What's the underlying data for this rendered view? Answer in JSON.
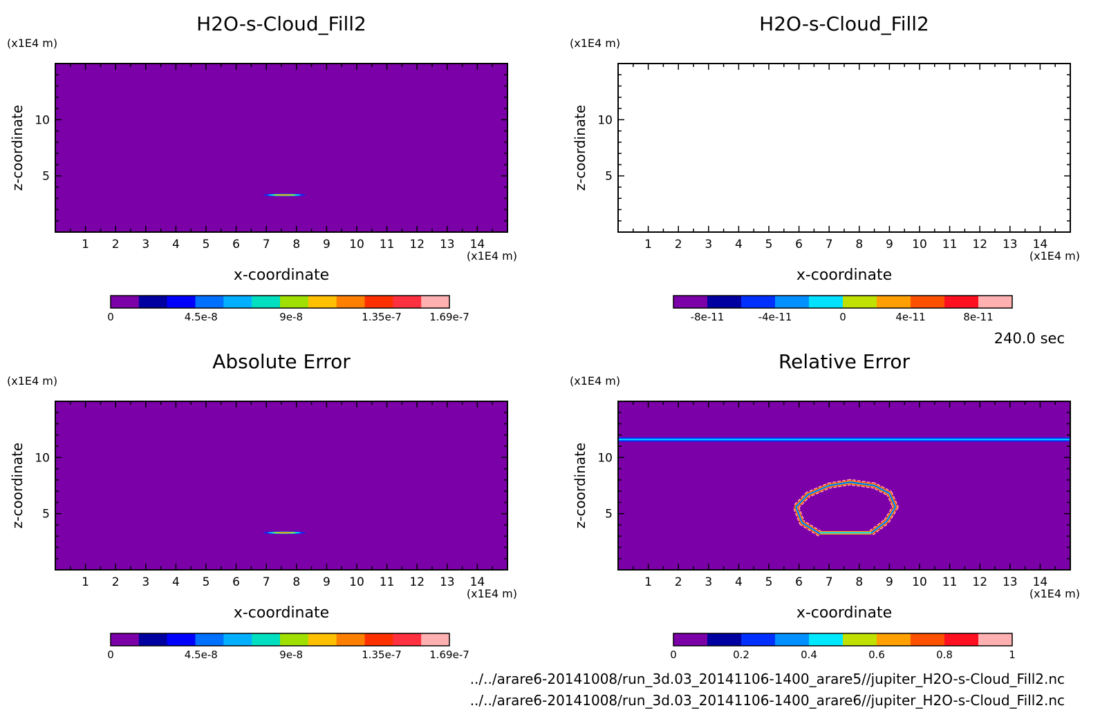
{
  "chart_data": [
    {
      "id": "p1",
      "type": "heatmap",
      "title": "H2O-s-Cloud_Fill2",
      "xlabel": "x-coordinate",
      "ylabel": "z-coordinate",
      "x_unit": "(x1E4 m)",
      "y_unit": "(x1E4 m)",
      "xlim": [
        0,
        15
      ],
      "ylim": [
        0,
        15
      ],
      "x_ticks": [
        1,
        2,
        3,
        4,
        5,
        6,
        7,
        8,
        9,
        10,
        11,
        12,
        13,
        14
      ],
      "y_ticks": [
        5,
        10
      ],
      "background_color": "#7b00a8",
      "feature": {
        "kind": "thin-ellipse",
        "cx": 7.6,
        "cy": 3.3,
        "rx": 0.7,
        "ry": 0.12,
        "colors": [
          "#0030ff",
          "#00e0ff",
          "#b8e000",
          "#ff8c00"
        ]
      },
      "colorbar": {
        "colors": [
          "#7b00a8",
          "#0000a0",
          "#0000ff",
          "#0070ff",
          "#00b0ff",
          "#00e0c0",
          "#a0e000",
          "#ffc000",
          "#ff8000",
          "#ff3000",
          "#ff3040",
          "#ffb0b0"
        ],
        "tick_labels": [
          "0",
          "4.5e-8",
          "9e-8",
          "1.35e-7",
          "1.69e-7"
        ],
        "tick_fractions": [
          0,
          0.267,
          0.533,
          0.8,
          1.0
        ]
      }
    },
    {
      "id": "p2",
      "type": "heatmap",
      "title": "H2O-s-Cloud_Fill2",
      "xlabel": "x-coordinate",
      "ylabel": "z-coordinate",
      "x_unit": "(x1E4 m)",
      "y_unit": "(x1E4 m)",
      "xlim": [
        0,
        15
      ],
      "ylim": [
        0,
        15
      ],
      "x_ticks": [
        1,
        2,
        3,
        4,
        5,
        6,
        7,
        8,
        9,
        10,
        11,
        12,
        13,
        14
      ],
      "y_ticks": [
        5,
        10
      ],
      "background_color": "#ffffff",
      "colorbar": {
        "colors": [
          "#7b00a8",
          "#0000a0",
          "#0030ff",
          "#0090ff",
          "#00e0ff",
          "#c0e000",
          "#ffa000",
          "#ff5000",
          "#ff1020",
          "#ffb0b0"
        ],
        "tick_labels": [
          "-8e-11",
          "-4e-11",
          "0",
          "4e-11",
          "8e-11"
        ],
        "tick_fractions": [
          0.1,
          0.3,
          0.5,
          0.7,
          0.9
        ]
      }
    },
    {
      "id": "p3",
      "type": "heatmap",
      "title": "Absolute Error",
      "xlabel": "x-coordinate",
      "ylabel": "z-coordinate",
      "x_unit": "(x1E4 m)",
      "y_unit": "(x1E4 m)",
      "xlim": [
        0,
        15
      ],
      "ylim": [
        0,
        15
      ],
      "x_ticks": [
        1,
        2,
        3,
        4,
        5,
        6,
        7,
        8,
        9,
        10,
        11,
        12,
        13,
        14
      ],
      "y_ticks": [
        5,
        10
      ],
      "background_color": "#7b00a8",
      "feature": {
        "kind": "thin-ellipse",
        "cx": 7.6,
        "cy": 3.3,
        "rx": 0.7,
        "ry": 0.12,
        "colors": [
          "#0030ff",
          "#00e0ff",
          "#b8e000",
          "#ff8c00"
        ]
      },
      "colorbar": {
        "colors": [
          "#7b00a8",
          "#0000a0",
          "#0000ff",
          "#0070ff",
          "#00b0ff",
          "#00e0c0",
          "#a0e000",
          "#ffc000",
          "#ff8000",
          "#ff3000",
          "#ff3040",
          "#ffb0b0"
        ],
        "tick_labels": [
          "0",
          "4.5e-8",
          "9e-8",
          "1.35e-7",
          "1.69e-7"
        ],
        "tick_fractions": [
          0,
          0.267,
          0.533,
          0.8,
          1.0
        ]
      }
    },
    {
      "id": "p4",
      "type": "heatmap",
      "title": "Relative Error",
      "xlabel": "x-coordinate",
      "ylabel": "z-coordinate",
      "x_unit": "(x1E4 m)",
      "y_unit": "(x1E4 m)",
      "xlim": [
        0,
        15
      ],
      "ylim": [
        0,
        15
      ],
      "x_ticks": [
        1,
        2,
        3,
        4,
        5,
        6,
        7,
        8,
        9,
        10,
        11,
        12,
        13,
        14
      ],
      "y_ticks": [
        5,
        10
      ],
      "background_color": "#7b00a8",
      "feature": {
        "kind": "arch-and-band",
        "band_z": 11.6,
        "arch_points": [
          [
            6.7,
            3.2
          ],
          [
            6.1,
            4.2
          ],
          [
            5.9,
            5.6
          ],
          [
            6.3,
            6.7
          ],
          [
            7.0,
            7.5
          ],
          [
            7.7,
            7.8
          ],
          [
            8.5,
            7.5
          ],
          [
            9.0,
            6.8
          ],
          [
            9.2,
            5.6
          ],
          [
            8.9,
            4.3
          ],
          [
            8.4,
            3.3
          ]
        ],
        "base_line": [
          6.7,
          8.4,
          3.3
        ],
        "colors": [
          "#ffb0b0",
          "#ff3000",
          "#ffa000",
          "#00e0ff",
          "#0030ff"
        ]
      },
      "colorbar": {
        "colors": [
          "#7b00a8",
          "#0000a0",
          "#0030ff",
          "#0090ff",
          "#00e8ff",
          "#c0e000",
          "#ffa000",
          "#ff5000",
          "#ff1020",
          "#ffb0b0"
        ],
        "tick_labels": [
          "0",
          "0.2",
          "0.4",
          "0.6",
          "0.8",
          "1"
        ],
        "tick_fractions": [
          0,
          0.2,
          0.4,
          0.6,
          0.8,
          1.0
        ]
      }
    }
  ],
  "time_label": "240.0 sec",
  "file_paths": [
    "../../arare6-20141008/run_3d.03_20141106-1400_arare5//jupiter_H2O-s-Cloud_Fill2.nc",
    "../../arare6-20141008/run_3d.03_20141106-1400_arare6//jupiter_H2O-s-Cloud_Fill2.nc"
  ]
}
